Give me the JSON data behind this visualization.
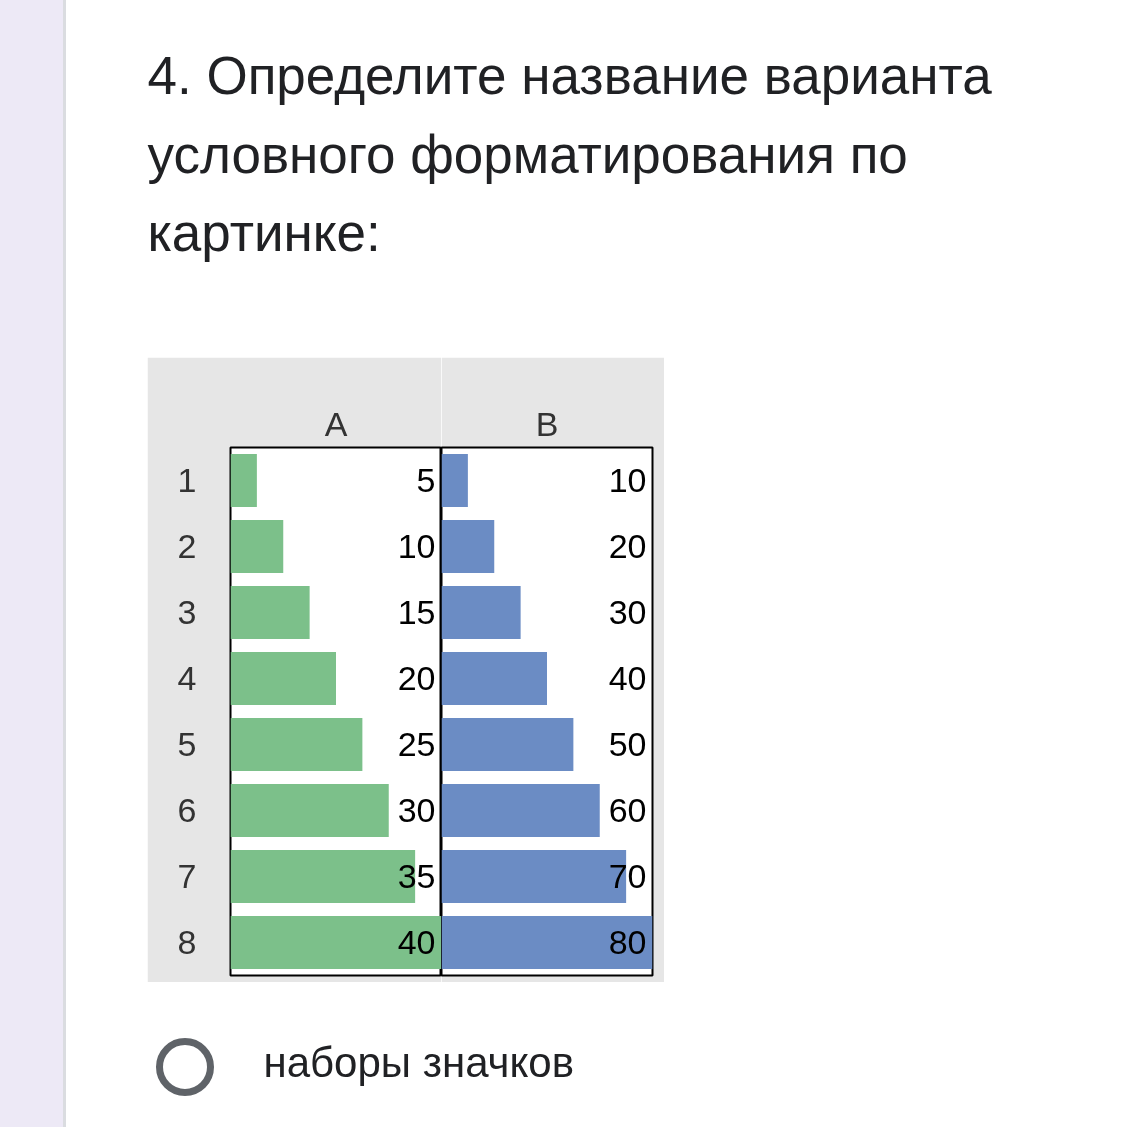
{
  "chart_data": [
    {
      "type": "other",
      "title": "4. Определите название варианта условного форматирования по картинке:"
    },
    {
      "type": "bar",
      "orientation": "horizontal",
      "title": "A",
      "categories": [
        "1",
        "2",
        "3",
        "4",
        "5",
        "6",
        "7",
        "8"
      ],
      "values": [
        5,
        10,
        15,
        20,
        25,
        30,
        35,
        40
      ],
      "color": "#7cc08a",
      "data_labels": true,
      "xlim": [
        0,
        40
      ],
      "tick_labels": "y"
    },
    {
      "type": "bar",
      "orientation": "horizontal",
      "title": "B",
      "categories": [
        "1",
        "2",
        "3",
        "4",
        "5",
        "6",
        "7",
        "8"
      ],
      "values": [
        10,
        20,
        30,
        40,
        50,
        60,
        70,
        80
      ],
      "color": "#6b8cc4",
      "data_labels": true,
      "xlim": [
        0,
        80
      ],
      "tick_labels": false
    },
    {
      "type": "other",
      "annotations": [
        "наборы значков"
      ]
    }
  ]
}
